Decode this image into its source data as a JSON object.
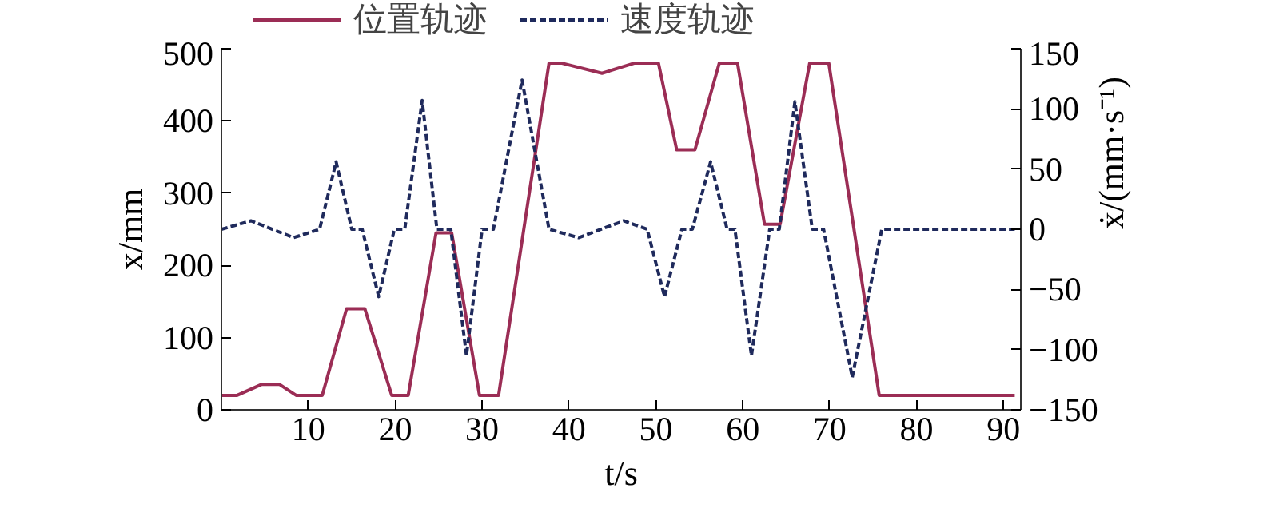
{
  "chart_data": {
    "type": "line",
    "xlabel": "t/s",
    "ylabel": "x/mm",
    "y2label": "ẋ/(mm·s⁻¹)",
    "legend": "top",
    "grid": false,
    "marker": "none",
    "xlim": [
      0,
      92
    ],
    "xticks": [
      10,
      20,
      30,
      40,
      50,
      60,
      70,
      80,
      90
    ],
    "ylim": [
      0,
      500
    ],
    "yticks": [
      0,
      100,
      200,
      300,
      400,
      500
    ],
    "y2lim": [
      -150,
      150
    ],
    "y2ticks": [
      {
        "value": -150,
        "label": "−150"
      },
      {
        "value": -100,
        "label": "−100"
      },
      {
        "value": -50,
        "label": "−50"
      },
      0,
      50,
      100,
      150
    ],
    "series": [
      {
        "name": "位置轨迹",
        "color": "#9b2d55",
        "line_style": "solid",
        "x": [
          0,
          1.8,
          4.6,
          6.7,
          8.6,
          11.6,
          14.4,
          16.5,
          19.6,
          21.5,
          24.7,
          26.5,
          29.7,
          31.9,
          37.7,
          39.2,
          43.8,
          47.5,
          50.3,
          52.4,
          54.5,
          57.3,
          59.4,
          62.5,
          64.3,
          67.7,
          69.9,
          75.7,
          91.3
        ],
        "values": [
          20,
          20,
          35,
          35,
          20,
          20,
          140,
          140,
          20,
          20,
          245,
          245,
          20,
          20,
          480,
          480,
          466,
          480,
          480,
          360,
          360,
          480,
          480,
          257,
          257,
          480,
          480,
          20,
          20
        ]
      },
      {
        "name": "速度轨迹",
        "color": "#1f2a5c",
        "line_style": "dashed",
        "axis": "y2",
        "x": [
          0,
          3.4,
          8.3,
          11.3,
          13.2,
          15.0,
          16.2,
          18.1,
          19.9,
          21.1,
          23.1,
          24.8,
          26.4,
          28.2,
          30.0,
          31.3,
          34.6,
          37.7,
          41.1,
          46.3,
          49.0,
          51.0,
          53.0,
          54.2,
          56.3,
          58.2,
          59.1,
          61.0,
          63.1,
          64.2,
          66.0,
          68.0,
          69.3,
          72.6,
          76.0,
          91.3
        ],
        "values": [
          0,
          7,
          -7,
          0,
          56,
          0,
          0,
          -56,
          0,
          0,
          107,
          0,
          0,
          -105,
          0,
          0,
          124,
          0,
          -7,
          7,
          0,
          -56,
          0,
          0,
          56,
          0,
          0,
          -105,
          0,
          0,
          106,
          0,
          0,
          -123,
          0,
          0
        ]
      }
    ]
  }
}
